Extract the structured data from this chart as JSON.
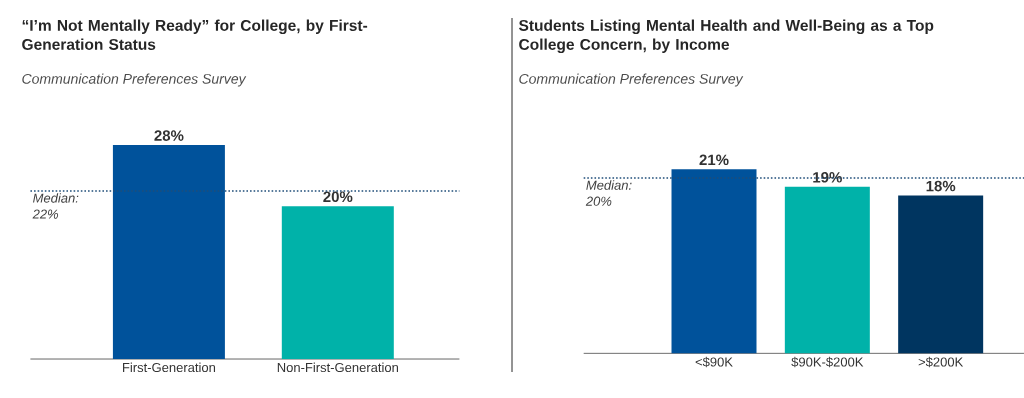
{
  "chart_data": [
    {
      "type": "bar",
      "title": "“I’m Not Mentally Ready” for College, by First-Generation Status",
      "subtitle": "Communication Preferences Survey",
      "categories": [
        "First-Generation",
        "Non-First-Generation"
      ],
      "values": [
        28,
        20
      ],
      "value_labels": [
        "28%",
        "20%"
      ],
      "colors": [
        "#00529b",
        "#00b2a9"
      ],
      "tick_labels": "x",
      "ref_lines": [
        {
          "axis": "y",
          "value": 22,
          "label": "Median: 22%",
          "color": "#1f4e79",
          "line_style": "dotted"
        }
      ]
    },
    {
      "type": "bar",
      "title": "Students Listing Mental Health and Well-Being as a Top College Concern, by Income",
      "subtitle": "Communication Preferences Survey",
      "categories": [
        "<$90K",
        "$90K-$200K",
        ">$200K"
      ],
      "values": [
        21,
        19,
        18
      ],
      "value_labels": [
        "21%",
        "19%",
        "18%"
      ],
      "colors": [
        "#00529b",
        "#00b2a9",
        "#003560"
      ],
      "tick_labels": "x",
      "ref_lines": [
        {
          "axis": "y",
          "value": 20,
          "label": "Median: 20%",
          "color": "#1f4e79",
          "line_style": "dotted"
        }
      ]
    }
  ]
}
